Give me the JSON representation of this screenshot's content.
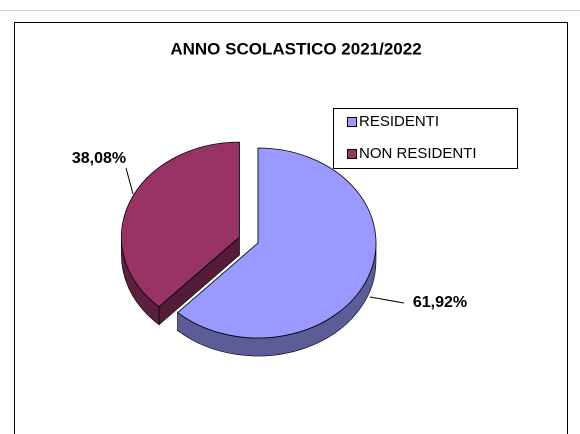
{
  "chart_data": {
    "type": "pie3d",
    "title": "ANNO SCOLASTICO 2021/2022",
    "categories": [
      "RESIDENTI",
      "NON RESIDENTI"
    ],
    "values": [
      61.92,
      38.08
    ],
    "value_labels": [
      "61,92%",
      "38,08%"
    ],
    "colors": [
      "#9999ff",
      "#993366"
    ],
    "exploded": [
      false,
      true
    ],
    "legend": "upper right"
  }
}
